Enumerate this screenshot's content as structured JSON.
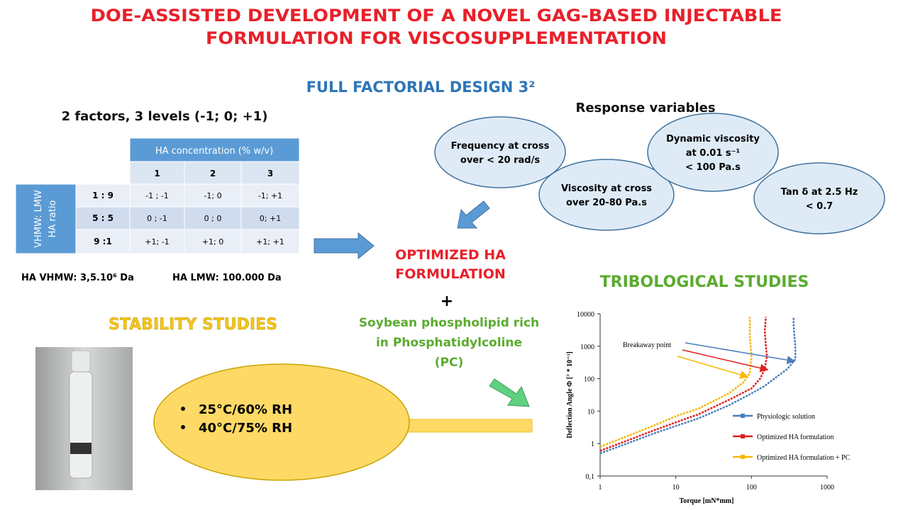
{
  "title_lines": [
    "DOE-ASSISTED DEVELOPMENT OF A NOVEL GAG-BASED INJECTABLE",
    "FORMULATION FOR VISCOSUPPLEMENTATION"
  ],
  "design_title": "FULL FACTORIAL DESIGN 3²",
  "factors_text": "2 factors, 3 levels (-1; 0; +1)",
  "table": {
    "header": "HA concentration (% w/v)",
    "levels": [
      "1",
      "2",
      "3"
    ],
    "row_header_lines": [
      "VHMW: LMW",
      "HA ratio"
    ],
    "rows": [
      {
        "label": "1 : 9",
        "cells": [
          "-1 ; -1",
          "-1; 0",
          "-1; +1"
        ]
      },
      {
        "label": "5 : 5",
        "cells": [
          "0 ; -1",
          "0 ; 0",
          "0; +1"
        ]
      },
      {
        "label": "9 :1",
        "cells": [
          "+1; -1",
          "+1; 0",
          "+1; +1"
        ]
      }
    ]
  },
  "molecular_weights": [
    "HA VHMW: 3,5.10⁶ Da",
    "HA LMW: 100.000 Da"
  ],
  "response_title": "Response variables",
  "responses": [
    [
      "Frequency at cross",
      "over < 20 rad/s"
    ],
    [
      "Viscosity at cross",
      "over 20-80 Pa.s"
    ],
    [
      "Dynamic viscosity",
      "at 0.01 s⁻¹",
      "< 100 Pa.s"
    ],
    [
      "Tan δ at 2.5 Hz",
      "< 0.7"
    ]
  ],
  "optimized_lines": [
    "OPTIMIZED  HA",
    "FORMULATION"
  ],
  "plus": "+",
  "phospholipid_lines": [
    "Soybean phospholipid rich",
    "in Phosphatidylcoline",
    "(PC)"
  ],
  "stability_title": "STABILITY STUDIES",
  "stability_conditions": [
    "25°C/60% RH",
    "40°C/75% RH"
  ],
  "tribology_title": "TRIBOLOGICAL STUDIES",
  "chart_data": {
    "type": "line",
    "x_label": "Torque [mN*mm]",
    "y_label": "Deflection Angle Φ [° * 10⁻³]",
    "annotation": "Breakaway point",
    "log_x": true,
    "log_y": true,
    "legend": "right",
    "xlim": [
      1,
      1000
    ],
    "xticks": [
      1,
      10,
      100,
      1000
    ],
    "ylim": [
      0.1,
      10000
    ],
    "yticks": [
      {
        "value": 0.1,
        "label": "0,1"
      },
      1,
      10,
      100,
      1000,
      10000
    ],
    "series": [
      {
        "name": "Physiologic solution",
        "color": "#4a7ebb",
        "x": [
          1,
          2,
          5,
          10,
          20,
          50,
          100,
          150,
          200,
          300,
          380,
          380,
          370,
          360,
          360
        ],
        "values": [
          0.5,
          0.9,
          2,
          3.5,
          6,
          15,
          35,
          60,
          100,
          200,
          400,
          1000,
          2000,
          5000,
          8000
        ]
      },
      {
        "name": "Optimized HA formulation",
        "color": "#e02020",
        "x": [
          1,
          2,
          5,
          10,
          20,
          50,
          100,
          130,
          150,
          160,
          155,
          150,
          155
        ],
        "values": [
          0.6,
          1.1,
          2.5,
          4.5,
          8,
          22,
          50,
          100,
          200,
          500,
          1000,
          3000,
          8000
        ]
      },
      {
        "name": "Optimized HA formulation + PC",
        "color": "#f5b800",
        "x": [
          1,
          2,
          5,
          10,
          20,
          50,
          80,
          95,
          100,
          95,
          95
        ],
        "values": [
          0.8,
          1.5,
          3.5,
          7,
          12,
          35,
          80,
          150,
          500,
          2000,
          8000
        ]
      }
    ]
  }
}
